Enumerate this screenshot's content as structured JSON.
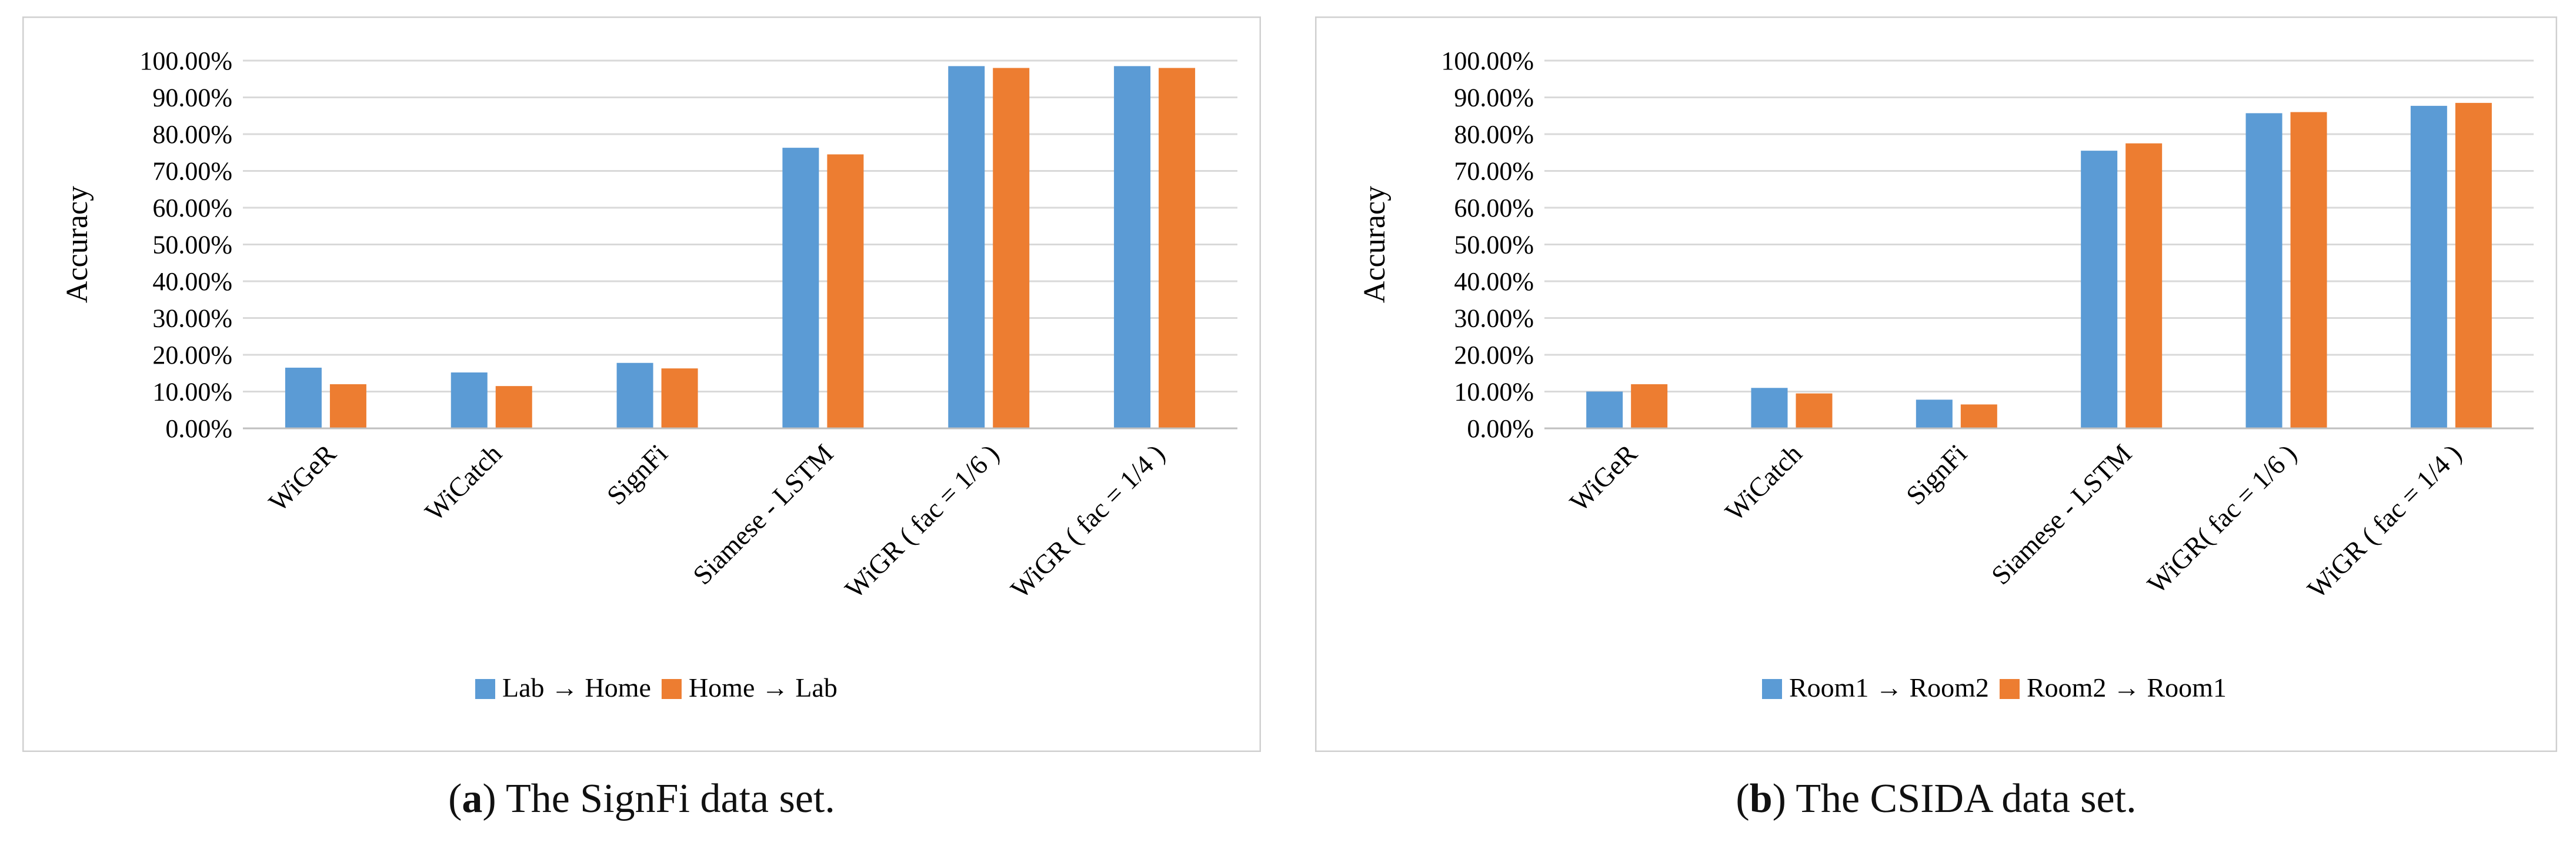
{
  "figures": [
    {
      "letter": "a",
      "caption": "The SignFi data set."
    },
    {
      "letter": "b",
      "caption": "The CSIDA data set."
    }
  ],
  "chart_data": [
    {
      "type": "bar",
      "ylabel": "Accuracy",
      "ylim": [
        0,
        1
      ],
      "yticks": [
        "0.00%",
        "10.00%",
        "20.00%",
        "30.00%",
        "40.00%",
        "50.00%",
        "60.00%",
        "70.00%",
        "80.00%",
        "90.00%",
        "100.00%"
      ],
      "categories": [
        "WiGeR",
        "WiCatch",
        "SignFi",
        "Siamese - LSTM",
        "WiGR ( fac = 1/6 )",
        "WiGR ( fac = 1/4 )"
      ],
      "series": [
        {
          "name": "Lab → Home",
          "color": "#5b9bd5",
          "values": [
            0.165,
            0.152,
            0.178,
            0.763,
            0.985,
            0.985
          ]
        },
        {
          "name": "Home → Lab",
          "color": "#ed7d31",
          "values": [
            0.12,
            0.115,
            0.163,
            0.745,
            0.98,
            0.98
          ]
        }
      ],
      "grid": true,
      "legend": "bottom"
    },
    {
      "type": "bar",
      "ylabel": "Accuracy",
      "ylim": [
        0,
        1
      ],
      "yticks": [
        "0.00%",
        "10.00%",
        "20.00%",
        "30.00%",
        "40.00%",
        "50.00%",
        "60.00%",
        "70.00%",
        "80.00%",
        "90.00%",
        "100.00%"
      ],
      "categories": [
        "WiGeR",
        "WiCatch",
        "SignFi",
        "Siamese - LSTM",
        "WiGR( fac = 1/6 )",
        "WiGR ( fac = 1/4 )"
      ],
      "series": [
        {
          "name": "Room1 → Room2",
          "color": "#5b9bd5",
          "values": [
            0.1,
            0.11,
            0.078,
            0.755,
            0.857,
            0.877
          ]
        },
        {
          "name": "Room2 → Room1",
          "color": "#ed7d31",
          "values": [
            0.12,
            0.095,
            0.065,
            0.775,
            0.86,
            0.885
          ]
        }
      ],
      "grid": true,
      "legend": "bottom"
    }
  ]
}
